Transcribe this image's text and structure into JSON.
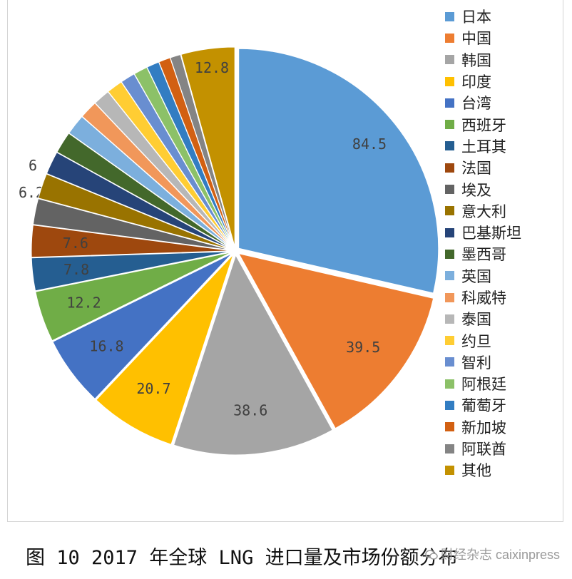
{
  "chart_data": {
    "type": "pie",
    "title": "",
    "start": "12 o'clock",
    "direction": "clockwise",
    "legend_position": "right",
    "slices": [
      {
        "name": "日本",
        "value": 84.5,
        "color": "#5B9BD5",
        "label": "84.5"
      },
      {
        "name": "中国",
        "value": 39.5,
        "color": "#ED7D31",
        "label": "39.5"
      },
      {
        "name": "韩国",
        "value": 38.6,
        "color": "#A5A5A5",
        "label": "38.6"
      },
      {
        "name": "印度",
        "value": 20.7,
        "color": "#FFC000",
        "label": "20.7"
      },
      {
        "name": "台湾",
        "value": 16.8,
        "color": "#4472C4",
        "label": "16.8"
      },
      {
        "name": "西班牙",
        "value": 12.2,
        "color": "#70AD47",
        "label": "12.2"
      },
      {
        "name": "土耳其",
        "value": 7.8,
        "color": "#255E91",
        "label": "7.8"
      },
      {
        "name": "法国",
        "value": 7.6,
        "color": "#9E480E",
        "label": "7.6"
      },
      {
        "name": "埃及",
        "value": 6.2,
        "color": "#636363",
        "label": "6.2"
      },
      {
        "name": "意大利",
        "value": 6,
        "color": "#997300",
        "label": "6"
      },
      {
        "name": "巴基斯坦",
        "value": 5.5,
        "color": "#264478",
        "label": ""
      },
      {
        "name": "墨西哥",
        "value": 5.2,
        "color": "#43682B",
        "label": ""
      },
      {
        "name": "英国",
        "value": 4.9,
        "color": "#7CAFDD",
        "label": ""
      },
      {
        "name": "科威特",
        "value": 4.3,
        "color": "#F1975A",
        "label": ""
      },
      {
        "name": "泰国",
        "value": 4.0,
        "color": "#B7B7B7",
        "label": ""
      },
      {
        "name": "约旦",
        "value": 3.8,
        "color": "#FFCD33",
        "label": ""
      },
      {
        "name": "智利",
        "value": 3.5,
        "color": "#698ED0",
        "label": ""
      },
      {
        "name": "阿根廷",
        "value": 3.3,
        "color": "#8CC168",
        "label": ""
      },
      {
        "name": "葡萄牙",
        "value": 3.0,
        "color": "#327DC2",
        "label": ""
      },
      {
        "name": "新加坡",
        "value": 2.8,
        "color": "#D26012",
        "label": ""
      },
      {
        "name": "阿联酋",
        "value": 2.5,
        "color": "#848484",
        "label": ""
      },
      {
        "name": "其他",
        "value": 12.8,
        "color": "#C39100",
        "label": "12.8"
      }
    ]
  },
  "caption": "图 10  2017 年全球 LNG 进口量及市场份额分布",
  "watermark": "财经杂志 caixinpress"
}
